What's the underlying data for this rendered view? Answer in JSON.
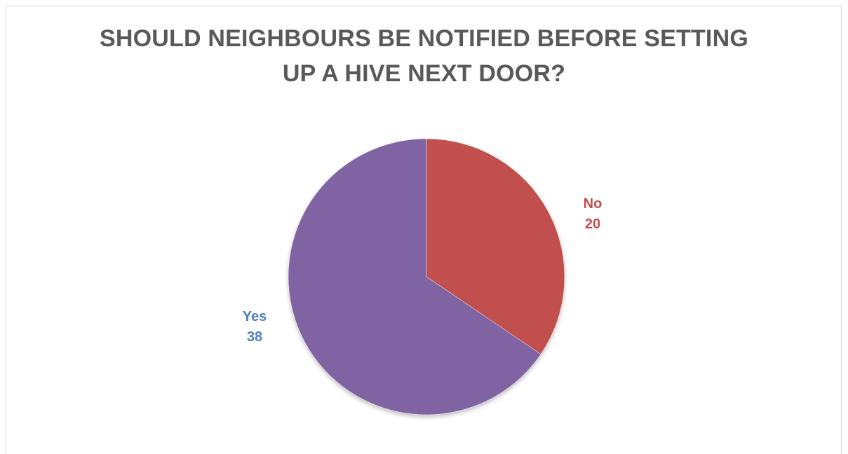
{
  "chart_data": {
    "type": "pie",
    "title": "SHOULD NEIGHBOURS BE NOTIFIED BEFORE SETTING UP A HIVE NEXT DOOR?",
    "title_lines": [
      "SHOULD NEIGHBOURS BE NOTIFIED BEFORE SETTING",
      "UP A HIVE NEXT DOOR?"
    ],
    "categories": [
      "No",
      "Yes"
    ],
    "values": [
      20,
      38
    ],
    "colors": [
      "#c0504d",
      "#8064a2"
    ],
    "label_colors": [
      "#c0504d",
      "#4f81bd"
    ],
    "data_labels": [
      {
        "category": "No",
        "value": "20"
      },
      {
        "category": "Yes",
        "value": "38"
      }
    ],
    "legend": "none",
    "start_angle": "12 o'clock",
    "direction": "clockwise"
  }
}
